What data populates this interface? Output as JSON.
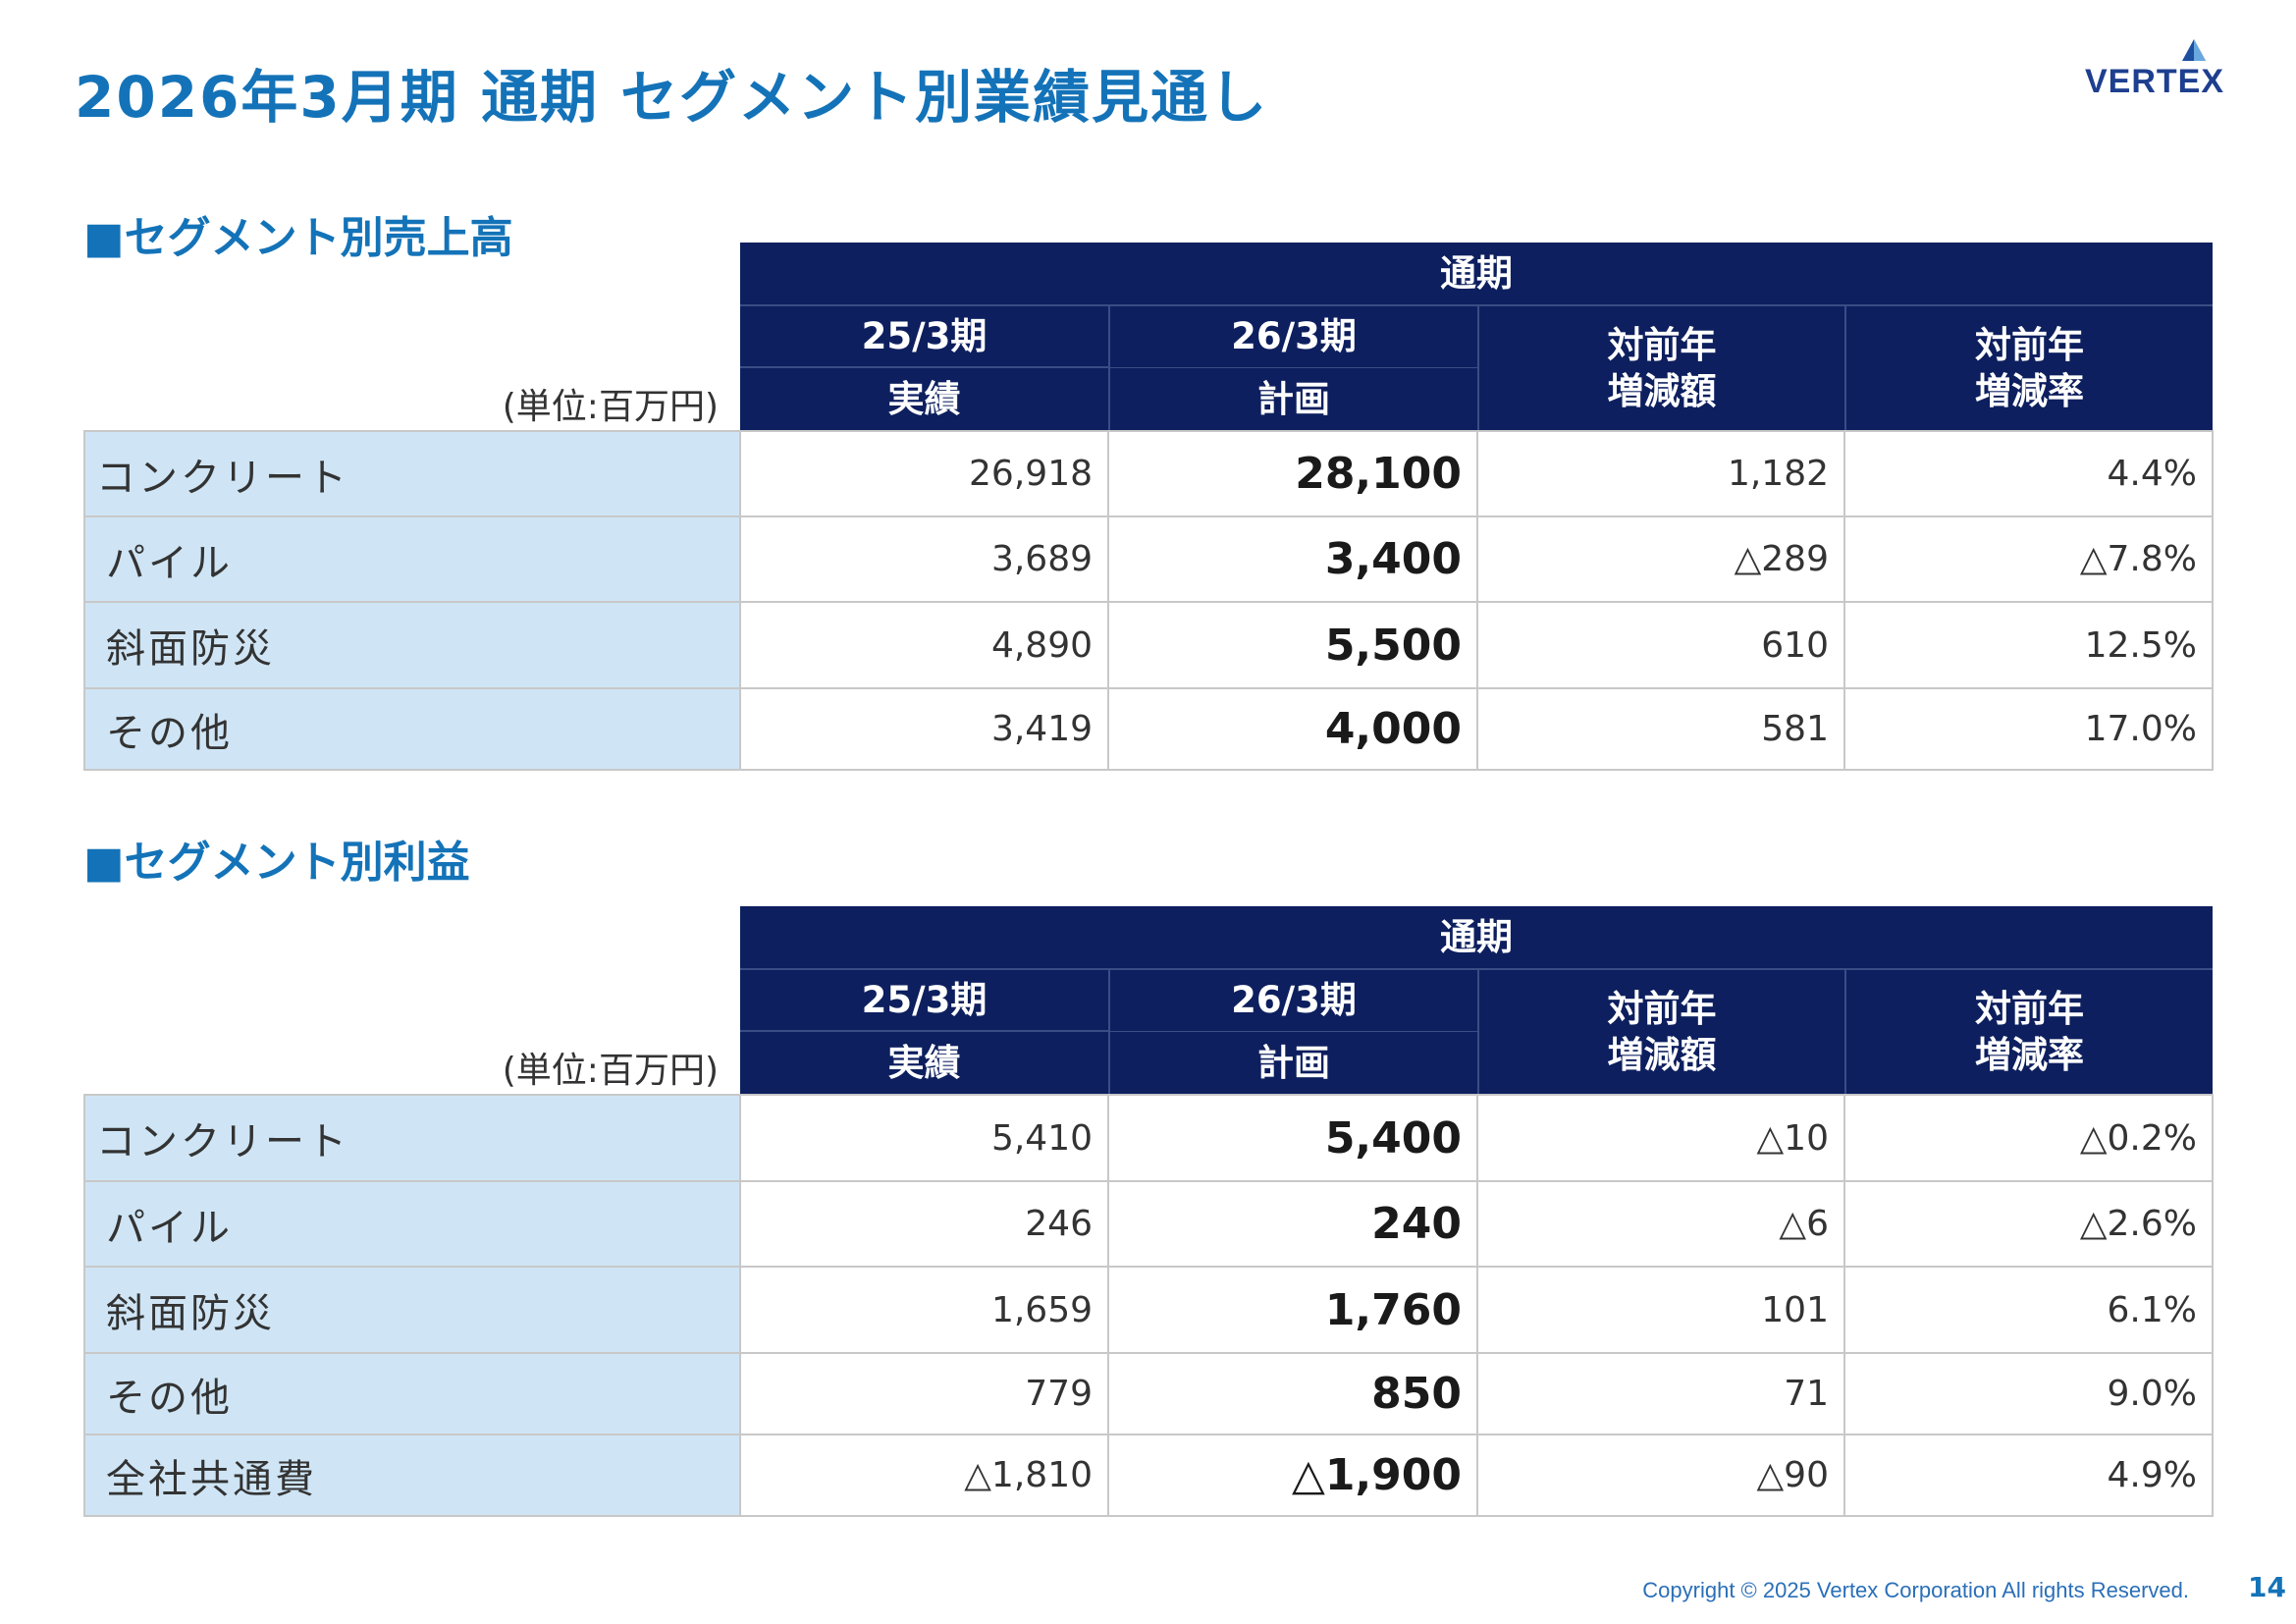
{
  "page": {
    "title": "2026年3月期 通期 セグメント別業績見通し",
    "logo_text": "VERTEX",
    "copyright": "Copyright © 2025 Vertex Corporation All rights Reserved.",
    "page_number": "14"
  },
  "sales_table": {
    "heading": "■セグメント別売上高",
    "unit": "(単位:百万円)",
    "period_header": "通期",
    "col_prev_line1": "25/3期",
    "col_prev_line2": "実績",
    "col_plan_line1": "26/3期",
    "col_plan_line2": "計画",
    "col_diff": "対前年\n増減額",
    "col_rate": "対前年\n増減率",
    "rows": [
      {
        "label": "コンクリート",
        "prev": "26,918",
        "plan": "28,100",
        "diff": "1,182",
        "rate": "4.4%"
      },
      {
        "label": "パイル",
        "prev": "3,689",
        "plan": "3,400",
        "diff": "△289",
        "rate": "△7.8%"
      },
      {
        "label": "斜面防災",
        "prev": "4,890",
        "plan": "5,500",
        "diff": "610",
        "rate": "12.5%"
      },
      {
        "label": "その他",
        "prev": "3,419",
        "plan": "4,000",
        "diff": "581",
        "rate": "17.0%"
      }
    ]
  },
  "profit_table": {
    "heading": "■セグメント別利益",
    "unit": "(単位:百万円)",
    "period_header": "通期",
    "col_prev_line1": "25/3期",
    "col_prev_line2": "実績",
    "col_plan_line1": "26/3期",
    "col_plan_line2": "計画",
    "col_diff": "対前年\n増減額",
    "col_rate": "対前年\n増減率",
    "rows": [
      {
        "label": "コンクリート",
        "prev": "5,410",
        "plan": "5,400",
        "diff": "△10",
        "rate": "△0.2%"
      },
      {
        "label": "パイル",
        "prev": "246",
        "plan": "240",
        "diff": "△6",
        "rate": "△2.6%"
      },
      {
        "label": "斜面防災",
        "prev": "1,659",
        "plan": "1,760",
        "diff": "101",
        "rate": "6.1%"
      },
      {
        "label": "その他",
        "prev": "779",
        "plan": "850",
        "diff": "71",
        "rate": "9.0%"
      },
      {
        "label": "全社共通費",
        "prev": "△1,810",
        "plan": "△1,900",
        "diff": "△90",
        "rate": "4.9%"
      }
    ]
  },
  "colors": {
    "title": "#1473b8",
    "header_bg": "#0d1f5e",
    "label_bg": "#cfe5f5",
    "footer": "#2a6fb8"
  }
}
